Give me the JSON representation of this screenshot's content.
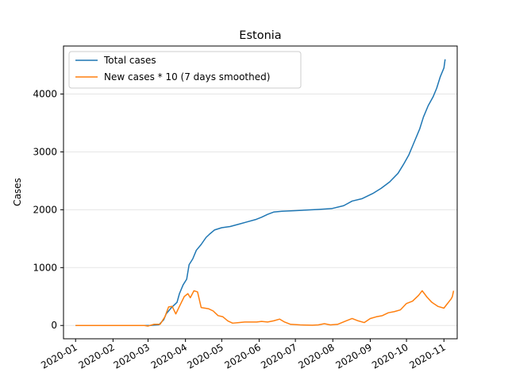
{
  "chart_data": {
    "type": "line",
    "title": "Estonia",
    "xlabel": "",
    "ylabel": "Cases",
    "x_tick_labels": [
      "2020-01",
      "2020-02",
      "2020-03",
      "2020-04",
      "2020-05",
      "2020-06",
      "2020-07",
      "2020-08",
      "2020-09",
      "2020-10",
      "2020-11"
    ],
    "y_tick_labels": [
      "0",
      "1000",
      "2000",
      "3000",
      "4000"
    ],
    "y_ticks": [
      0,
      1000,
      2000,
      3000,
      4000
    ],
    "xlim": [
      "2019-12-22",
      "2020-11-12"
    ],
    "ylim": [
      -230,
      4830
    ],
    "grid": "horizontal",
    "legend_position": "top-left",
    "series": [
      {
        "name": "Total cases",
        "color": "#1f77b4",
        "points": [
          [
            "2020-01-01",
            0
          ],
          [
            "2020-02-01",
            0
          ],
          [
            "2020-02-26",
            0
          ],
          [
            "2020-03-03",
            2
          ],
          [
            "2020-03-10",
            12
          ],
          [
            "2020-03-14",
            100
          ],
          [
            "2020-03-16",
            200
          ],
          [
            "2020-03-20",
            300
          ],
          [
            "2020-03-25",
            400
          ],
          [
            "2020-03-27",
            550
          ],
          [
            "2020-03-30",
            700
          ],
          [
            "2020-04-02",
            800
          ],
          [
            "2020-04-04",
            1050
          ],
          [
            "2020-04-07",
            1150
          ],
          [
            "2020-04-10",
            1300
          ],
          [
            "2020-04-14",
            1400
          ],
          [
            "2020-04-18",
            1520
          ],
          [
            "2020-04-21",
            1580
          ],
          [
            "2020-04-25",
            1650
          ],
          [
            "2020-05-01",
            1690
          ],
          [
            "2020-05-08",
            1710
          ],
          [
            "2020-05-15",
            1750
          ],
          [
            "2020-05-22",
            1790
          ],
          [
            "2020-05-29",
            1830
          ],
          [
            "2020-06-03",
            1870
          ],
          [
            "2020-06-08",
            1920
          ],
          [
            "2020-06-13",
            1960
          ],
          [
            "2020-06-20",
            1975
          ],
          [
            "2020-07-01",
            1985
          ],
          [
            "2020-07-10",
            1995
          ],
          [
            "2020-07-20",
            2005
          ],
          [
            "2020-07-31",
            2020
          ],
          [
            "2020-08-10",
            2070
          ],
          [
            "2020-08-17",
            2150
          ],
          [
            "2020-08-25",
            2190
          ],
          [
            "2020-09-03",
            2280
          ],
          [
            "2020-09-10",
            2370
          ],
          [
            "2020-09-17",
            2480
          ],
          [
            "2020-09-24",
            2630
          ],
          [
            "2020-09-29",
            2800
          ],
          [
            "2020-10-03",
            2950
          ],
          [
            "2020-10-07",
            3150
          ],
          [
            "2020-10-12",
            3400
          ],
          [
            "2020-10-15",
            3600
          ],
          [
            "2020-10-19",
            3800
          ],
          [
            "2020-10-23",
            3950
          ],
          [
            "2020-10-26",
            4100
          ],
          [
            "2020-10-29",
            4300
          ],
          [
            "2020-11-01",
            4450
          ],
          [
            "2020-11-02",
            4600
          ]
        ]
      },
      {
        "name": "New cases * 10 (7 days smoothed)",
        "color": "#ff7f0e",
        "points": [
          [
            "2020-01-01",
            0
          ],
          [
            "2020-02-01",
            0
          ],
          [
            "2020-02-27",
            0
          ],
          [
            "2020-03-01",
            -10
          ],
          [
            "2020-03-06",
            20
          ],
          [
            "2020-03-11",
            20
          ],
          [
            "2020-03-15",
            150
          ],
          [
            "2020-03-18",
            320
          ],
          [
            "2020-03-21",
            330
          ],
          [
            "2020-03-24",
            200
          ],
          [
            "2020-03-27",
            330
          ],
          [
            "2020-03-31",
            500
          ],
          [
            "2020-04-03",
            550
          ],
          [
            "2020-04-05",
            480
          ],
          [
            "2020-04-08",
            600
          ],
          [
            "2020-04-11",
            580
          ],
          [
            "2020-04-14",
            310
          ],
          [
            "2020-04-17",
            300
          ],
          [
            "2020-04-20",
            290
          ],
          [
            "2020-04-24",
            250
          ],
          [
            "2020-04-28",
            170
          ],
          [
            "2020-05-02",
            150
          ],
          [
            "2020-05-06",
            80
          ],
          [
            "2020-05-10",
            40
          ],
          [
            "2020-05-15",
            50
          ],
          [
            "2020-05-20",
            60
          ],
          [
            "2020-05-25",
            60
          ],
          [
            "2020-05-30",
            60
          ],
          [
            "2020-06-03",
            70
          ],
          [
            "2020-06-08",
            60
          ],
          [
            "2020-06-13",
            80
          ],
          [
            "2020-06-18",
            110
          ],
          [
            "2020-06-22",
            60
          ],
          [
            "2020-06-27",
            20
          ],
          [
            "2020-07-05",
            10
          ],
          [
            "2020-07-15",
            5
          ],
          [
            "2020-07-20",
            10
          ],
          [
            "2020-07-25",
            30
          ],
          [
            "2020-07-30",
            10
          ],
          [
            "2020-08-05",
            20
          ],
          [
            "2020-08-12",
            80
          ],
          [
            "2020-08-17",
            120
          ],
          [
            "2020-08-22",
            80
          ],
          [
            "2020-08-27",
            50
          ],
          [
            "2020-09-01",
            120
          ],
          [
            "2020-09-06",
            150
          ],
          [
            "2020-09-11",
            170
          ],
          [
            "2020-09-16",
            220
          ],
          [
            "2020-09-21",
            240
          ],
          [
            "2020-09-26",
            270
          ],
          [
            "2020-10-01",
            380
          ],
          [
            "2020-10-06",
            420
          ],
          [
            "2020-10-11",
            520
          ],
          [
            "2020-10-14",
            600
          ],
          [
            "2020-10-18",
            490
          ],
          [
            "2020-10-22",
            400
          ],
          [
            "2020-10-27",
            330
          ],
          [
            "2020-11-01",
            300
          ],
          [
            "2020-11-04",
            380
          ],
          [
            "2020-11-07",
            460
          ],
          [
            "2020-11-08",
            500
          ],
          [
            "2020-11-09",
            600
          ]
        ]
      }
    ]
  }
}
